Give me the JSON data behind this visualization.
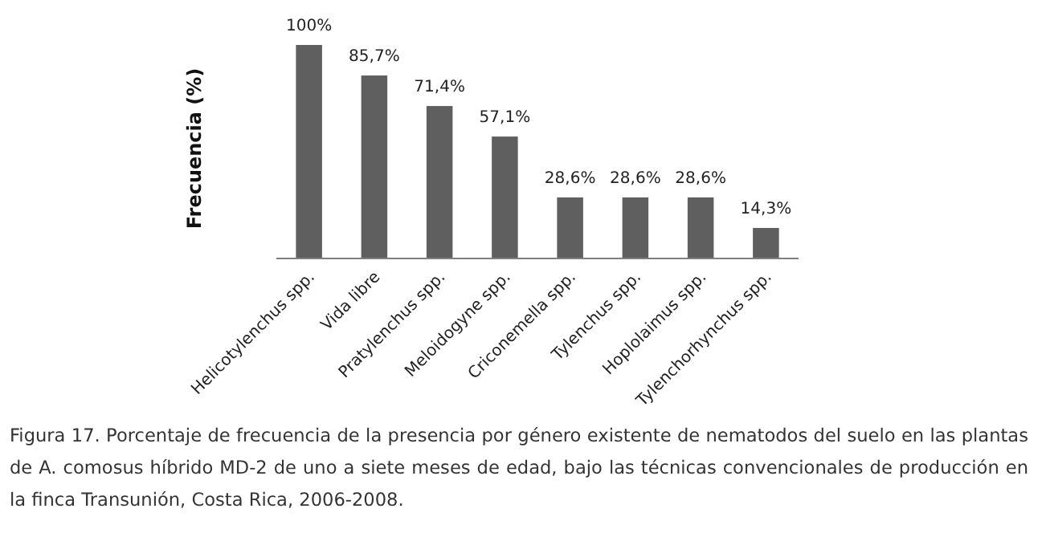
{
  "chart_data": {
    "type": "bar",
    "ylabel": "Frecuencia (%)",
    "categories": [
      "Helicotylenchus spp.",
      "Vida libre",
      "Pratylenchus spp.",
      "Meloidogyne spp.",
      "Criconemella spp.",
      "Tylenchus spp.",
      "Hoplolaimus spp.",
      "Tylenchorhynchus spp."
    ],
    "values": [
      100,
      85.7,
      71.4,
      57.1,
      28.6,
      28.6,
      28.6,
      14.3
    ],
    "value_labels": [
      "100%",
      "85,7%",
      "71,4%",
      "57,1%",
      "28,6%",
      "28,6%",
      "28,6%",
      "14,3%"
    ],
    "color": "#5f5f5f",
    "annotations": [
      "Figura 17. Porcentaje de frecuencia de la presencia por género existente de nematodos del suelo en las plantas de A. comosus híbrido MD-2 de uno a siete meses de edad, bajo las técnicas convencionales de producción en la finca Transunión, Costa Rica, 2006-2008."
    ]
  }
}
